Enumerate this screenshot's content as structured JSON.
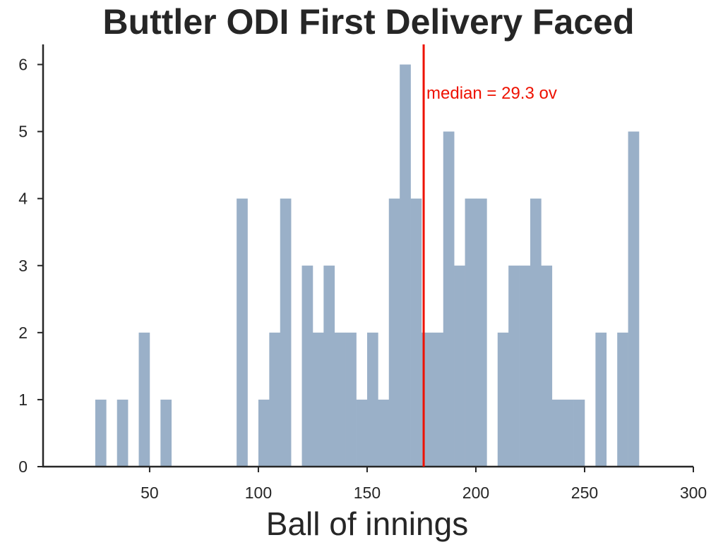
{
  "chart_data": {
    "type": "bar",
    "title": "Buttler ODI First Delivery Faced",
    "xlabel": "Ball of innings",
    "ylabel": "",
    "xlim": [
      1,
      300
    ],
    "ylim": [
      0,
      6.3
    ],
    "xticks": [
      50,
      100,
      150,
      200,
      250,
      300
    ],
    "yticks": [
      0,
      1,
      2,
      3,
      4,
      5,
      6
    ],
    "bin_width": 5,
    "bins": [
      {
        "start": 25,
        "end": 30,
        "count": 1
      },
      {
        "start": 35,
        "end": 40,
        "count": 1
      },
      {
        "start": 45,
        "end": 50,
        "count": 2
      },
      {
        "start": 55,
        "end": 60,
        "count": 1
      },
      {
        "start": 90,
        "end": 95,
        "count": 4
      },
      {
        "start": 100,
        "end": 105,
        "count": 1
      },
      {
        "start": 105,
        "end": 110,
        "count": 2
      },
      {
        "start": 110,
        "end": 115,
        "count": 4
      },
      {
        "start": 120,
        "end": 125,
        "count": 3
      },
      {
        "start": 125,
        "end": 130,
        "count": 2
      },
      {
        "start": 130,
        "end": 135,
        "count": 3
      },
      {
        "start": 135,
        "end": 140,
        "count": 2
      },
      {
        "start": 140,
        "end": 145,
        "count": 2
      },
      {
        "start": 145,
        "end": 150,
        "count": 1
      },
      {
        "start": 150,
        "end": 155,
        "count": 2
      },
      {
        "start": 155,
        "end": 160,
        "count": 1
      },
      {
        "start": 160,
        "end": 165,
        "count": 4
      },
      {
        "start": 165,
        "end": 170,
        "count": 6
      },
      {
        "start": 170,
        "end": 175,
        "count": 4
      },
      {
        "start": 175,
        "end": 180,
        "count": 2
      },
      {
        "start": 180,
        "end": 185,
        "count": 2
      },
      {
        "start": 185,
        "end": 190,
        "count": 5
      },
      {
        "start": 190,
        "end": 195,
        "count": 3
      },
      {
        "start": 195,
        "end": 200,
        "count": 4
      },
      {
        "start": 200,
        "end": 205,
        "count": 4
      },
      {
        "start": 210,
        "end": 215,
        "count": 2
      },
      {
        "start": 215,
        "end": 220,
        "count": 3
      },
      {
        "start": 220,
        "end": 225,
        "count": 3
      },
      {
        "start": 225,
        "end": 230,
        "count": 4
      },
      {
        "start": 230,
        "end": 235,
        "count": 3
      },
      {
        "start": 235,
        "end": 240,
        "count": 1
      },
      {
        "start": 240,
        "end": 245,
        "count": 1
      },
      {
        "start": 245,
        "end": 250,
        "count": 1
      },
      {
        "start": 255,
        "end": 260,
        "count": 2
      },
      {
        "start": 265,
        "end": 270,
        "count": 2
      },
      {
        "start": 270,
        "end": 275,
        "count": 5
      }
    ],
    "median": {
      "x": 176,
      "label": "median = 29.3 ov"
    },
    "bar_color": "#9ab0c8",
    "median_color": "#ee1100",
    "grid": false,
    "legend": "none"
  }
}
